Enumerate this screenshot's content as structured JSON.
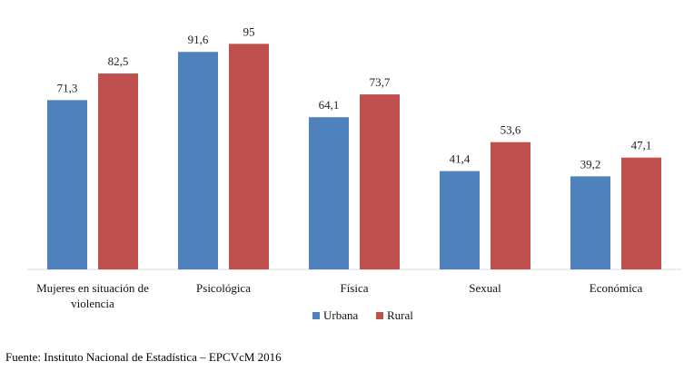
{
  "chart_data": {
    "type": "bar",
    "categories": [
      "Mujeres en situación de violencia",
      "Psicológica",
      "Física",
      "Sexual",
      "Económica"
    ],
    "category_lines": [
      [
        "Mujeres en situación de",
        "violencia"
      ],
      [
        "Psicológica"
      ],
      [
        "Física"
      ],
      [
        "Sexual"
      ],
      [
        "Económica"
      ]
    ],
    "series": [
      {
        "name": "Urbana",
        "values": [
          71.3,
          91.6,
          64.1,
          41.4,
          39.2
        ],
        "labels": [
          "71,3",
          "91,6",
          "64,1",
          "41,4",
          "39,2"
        ],
        "color": "#4f81bd"
      },
      {
        "name": "Rural",
        "values": [
          82.5,
          95,
          73.7,
          53.6,
          47.1
        ],
        "labels": [
          "82,5",
          "95",
          "73,7",
          "53,6",
          "47,1"
        ],
        "color": "#c0504d"
      }
    ],
    "ylim": [
      0,
      100
    ],
    "grid": false,
    "legend": "bottom",
    "axis_color": "#d9d9d9"
  },
  "source": "Fuente: Instituto Nacional de Estadística – EPCVcM 2016"
}
